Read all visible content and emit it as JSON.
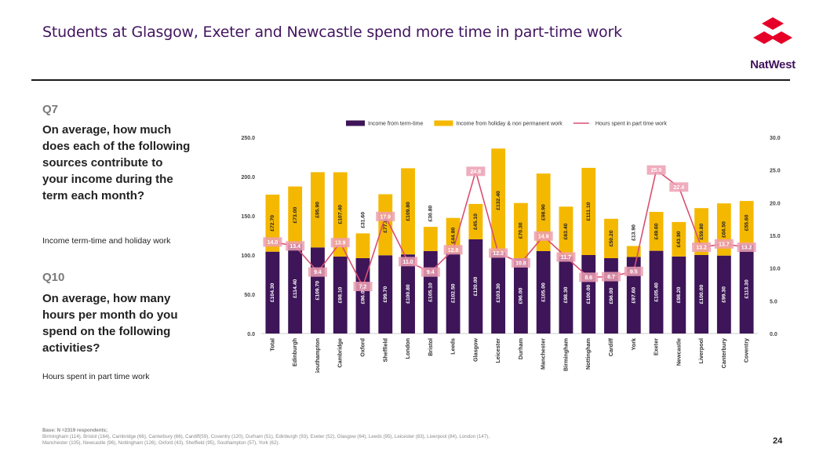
{
  "header": {
    "title": "Students at Glasgow, Exeter and Newcastle spend more time in part-time work",
    "brand": "NatWest"
  },
  "questions": [
    {
      "code": "Q7",
      "text": "On average, how much does each of the following sources contribute to your income during the term each month?",
      "sub": "Income term-time and holiday work"
    },
    {
      "code": "Q10",
      "text": "On average, how many hours per month do you spend on the following activities?",
      "sub": "Hours spent in part time work"
    }
  ],
  "chart_data": {
    "type": "bar",
    "stacked": true,
    "categories": [
      "Total",
      "Edinburgh",
      "Southampton",
      "Cambridge",
      "Oxford",
      "Sheffield",
      "London",
      "Bristol",
      "Leeds",
      "Glasgow",
      "Leicester",
      "Durham",
      "Manchester",
      "Birmingham",
      "Nottingham",
      "Cardiff",
      "York",
      "Exeter",
      "Newcastle",
      "Liverpool",
      "Canterbury",
      "Coventry"
    ],
    "series": [
      {
        "name": "Income from term-time",
        "values": [
          104.3,
          114.4,
          109.7,
          98.1,
          96.0,
          99.7,
          100.8,
          105.1,
          102.5,
          120.0,
          103.3,
          96.0,
          105.0,
          98.3,
          100.0,
          96.0,
          97.6,
          105.4,
          98.2,
          100.0,
          99.3,
          113.3
        ],
        "labels": [
          "£104.30",
          "£114.40",
          "£109.70",
          "£98.10",
          "£96.00",
          "£99.70",
          "£100.80",
          "£105.10",
          "£102.50",
          "£120.00",
          "£103.30",
          "£96.00",
          "£105.00",
          "£98.30",
          "£100.00",
          "£96.00",
          "£97.60",
          "£105.40",
          "£98.20",
          "£100.00",
          "£99.30",
          "£113.30"
        ],
        "color": "#3d1558"
      },
      {
        "name": "Income from holiday & non permanent work",
        "values": [
          72.7,
          73.0,
          95.9,
          107.4,
          31.6,
          77.8,
          109.8,
          30.8,
          44.8,
          45.1,
          132.4,
          70.3,
          98.9,
          63.4,
          111.1,
          50.2,
          13.9,
          49.6,
          43.9,
          59.8,
          66.5,
          55.6
        ],
        "labels": [
          "£72.70",
          "£73.00",
          "£95.90",
          "£107.40",
          "£31.60",
          "£77.80",
          "£109.80",
          "£30.80",
          "£44.80",
          "£45.10",
          "£132.40",
          "£70.30",
          "£98.90",
          "£63.40",
          "£111.10",
          "£50.20",
          "£13.90",
          "£49.60",
          "£43.90",
          "£59.80",
          "£66.50",
          "£55.60"
        ],
        "color": "#f5b800"
      },
      {
        "name": "Hours spent in part time work",
        "type": "line",
        "axis": "right",
        "values": [
          14.0,
          13.4,
          9.4,
          13.9,
          7.2,
          17.9,
          11.0,
          9.4,
          12.8,
          24.8,
          12.3,
          10.8,
          14.9,
          11.7,
          8.6,
          8.7,
          9.5,
          25.0,
          22.4,
          13.2,
          13.7,
          13.2
        ],
        "labels": [
          "14.0",
          "13.4",
          "9.4",
          "13.9",
          "7.2",
          "17.9",
          "11.0",
          "9.4",
          "12.8",
          "24.8",
          "12.3",
          "10.8",
          "14.9",
          "11.7",
          "8.6",
          "8.7",
          "9.5",
          "25.0",
          "22.4",
          "13.2",
          "13.7",
          "13.2"
        ],
        "color": "#d94f72"
      }
    ],
    "y_left": {
      "ylim": [
        0,
        250
      ],
      "ticks": [
        "0.0",
        "50.0",
        "100.0",
        "150.0",
        "200.0",
        "250.0"
      ]
    },
    "y_right": {
      "ylim": [
        0,
        30
      ],
      "ticks": [
        "0.0",
        "5.0",
        "10.0",
        "15.0",
        "20.0",
        "25.0",
        "30.0"
      ]
    },
    "legend_position": "top",
    "grid": false
  },
  "footnote": {
    "base_label": "Base: N =2319 respondents;",
    "line1": "Birmingham (114), Bristol (164), Cambridge (66), Canterbury (66), Cardiff(59), Coventry (120), Durham (51), Edinburgh (93), Exeter (52), Glasgow (64), Leeds (95), Leicester (83), Liverpool (84), London (147),",
    "line2": "Manchester (105), Newcastle (96), Nottingham (126), Oxford (43), Sheffield (95), Southampton (57), York (62)."
  },
  "page_number": "24"
}
